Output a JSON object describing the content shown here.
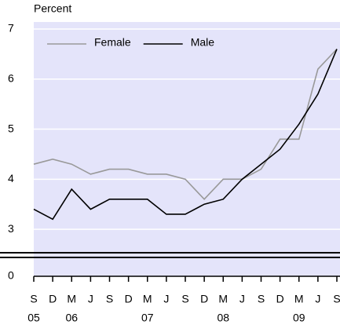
{
  "chart_data": {
    "type": "line",
    "y_axis_label": "Percent",
    "categories": [
      "S",
      "D",
      "M",
      "J",
      "S",
      "D",
      "M",
      "J",
      "S",
      "D",
      "M",
      "J",
      "S",
      "D",
      "M",
      "J",
      "S"
    ],
    "year_labels": [
      "05",
      null,
      "06",
      null,
      null,
      null,
      "07",
      null,
      null,
      null,
      "08",
      null,
      null,
      null,
      "09",
      null,
      null
    ],
    "series": [
      {
        "name": "Female",
        "color": "#999999",
        "values": [
          4.3,
          4.4,
          4.3,
          4.1,
          4.2,
          4.2,
          4.1,
          4.1,
          4.0,
          3.6,
          4.0,
          4.0,
          4.2,
          4.8,
          4.8,
          6.2,
          6.6
        ]
      },
      {
        "name": "Male",
        "color": "#000000",
        "values": [
          3.4,
          3.2,
          3.8,
          3.4,
          3.6,
          3.6,
          3.6,
          3.3,
          3.3,
          3.5,
          3.6,
          4.0,
          4.3,
          4.6,
          5.1,
          5.7,
          6.6
        ]
      }
    ],
    "ylim": [
      2.5,
      7
    ],
    "yticks": [
      0,
      3,
      4,
      5,
      6,
      7
    ],
    "y_break": [
      0,
      2.5
    ],
    "grid": true,
    "legend": "top"
  }
}
